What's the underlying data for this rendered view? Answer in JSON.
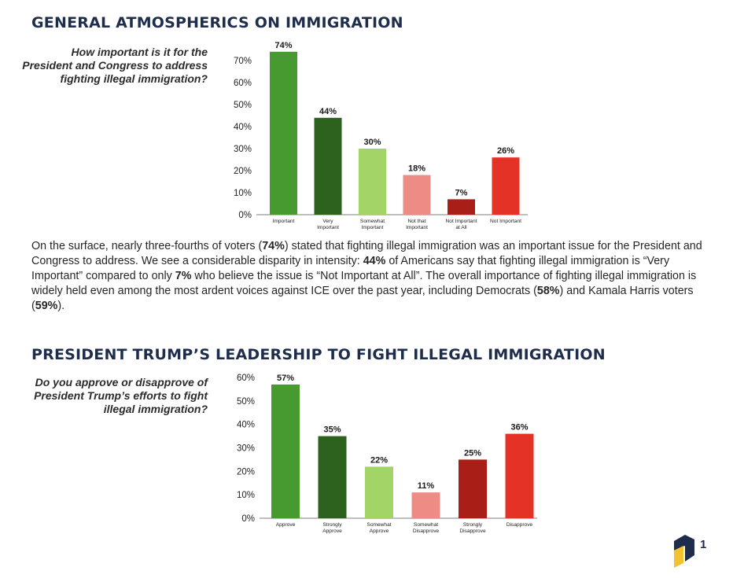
{
  "section1": {
    "heading": "GENERAL ATMOSPHERICS ON IMMIGRATION",
    "question": "How important is it for the President and Congress to address fighting illegal immigration?"
  },
  "section2": {
    "heading": "PRESIDENT TRUMP’S LEADERSHIP TO FIGHT ILLEGAL IMMIGRATION",
    "question": "Do you approve or disapprove of President Trump’s efforts to fight illegal immigration?"
  },
  "body": [
    {
      "text": "On the surface, nearly three-fourths of voters (",
      "bold": false
    },
    {
      "text": "74%",
      "bold": true
    },
    {
      "text": ") stated that fighting illegal immigration was an important issue for the President and Congress to address. We see a considerable disparity in intensity: ",
      "bold": false
    },
    {
      "text": "44%",
      "bold": true
    },
    {
      "text": " of Americans say that fighting illegal immigration is “Very Important” compared to only ",
      "bold": false
    },
    {
      "text": "7%",
      "bold": true
    },
    {
      "text": " who believe the issue is “Not Important at All”. The overall importance of fighting illegal immigration is widely held even among the most ardent voices against ICE over the past year, including Democrats (",
      "bold": false
    },
    {
      "text": "58%",
      "bold": true
    },
    {
      "text": ") and Kamala Harris voters (",
      "bold": false
    },
    {
      "text": "59%",
      "bold": true
    },
    {
      "text": ").",
      "bold": false
    }
  ],
  "page_number": "1",
  "chart_data": [
    {
      "type": "bar",
      "title": "",
      "categories": [
        [
          "Important"
        ],
        [
          "Very",
          "Important"
        ],
        [
          "Somewhat",
          "Important"
        ],
        [
          "Not that",
          "Important"
        ],
        [
          "Not Important",
          "at All"
        ],
        [
          "Not Important"
        ]
      ],
      "values": [
        74,
        44,
        30,
        18,
        7,
        26
      ],
      "value_labels": [
        "74%",
        "44%",
        "30%",
        "18%",
        "7%",
        "26%"
      ],
      "colors": [
        "#469a2f",
        "#2c621d",
        "#a3d468",
        "#ec8c85",
        "#a91e16",
        "#e43227"
      ],
      "ylim": [
        0,
        70
      ],
      "yticks": [
        0,
        10,
        20,
        30,
        40,
        50,
        60,
        70
      ],
      "ytick_labels": [
        "0%",
        "10%",
        "20%",
        "30%",
        "40%",
        "50%",
        "60%",
        "70%"
      ],
      "grid": false
    },
    {
      "type": "bar",
      "title": "",
      "categories": [
        [
          "Approve"
        ],
        [
          "Strongly",
          "Approve"
        ],
        [
          "Somewhat",
          "Approve"
        ],
        [
          "Somewhat",
          "Disapprove"
        ],
        [
          "Strongly",
          "Disapprove"
        ],
        [
          "Disapprove"
        ]
      ],
      "values": [
        57,
        35,
        22,
        11,
        25,
        36
      ],
      "value_labels": [
        "57%",
        "35%",
        "22%",
        "11%",
        "25%",
        "36%"
      ],
      "colors": [
        "#469a2f",
        "#2c621d",
        "#a3d468",
        "#ec8c85",
        "#a91e16",
        "#e43227"
      ],
      "ylim": [
        0,
        60
      ],
      "yticks": [
        0,
        10,
        20,
        30,
        40,
        50,
        60
      ],
      "ytick_labels": [
        "0%",
        "10%",
        "20%",
        "30%",
        "40%",
        "50%",
        "60%"
      ],
      "grid": false
    }
  ]
}
